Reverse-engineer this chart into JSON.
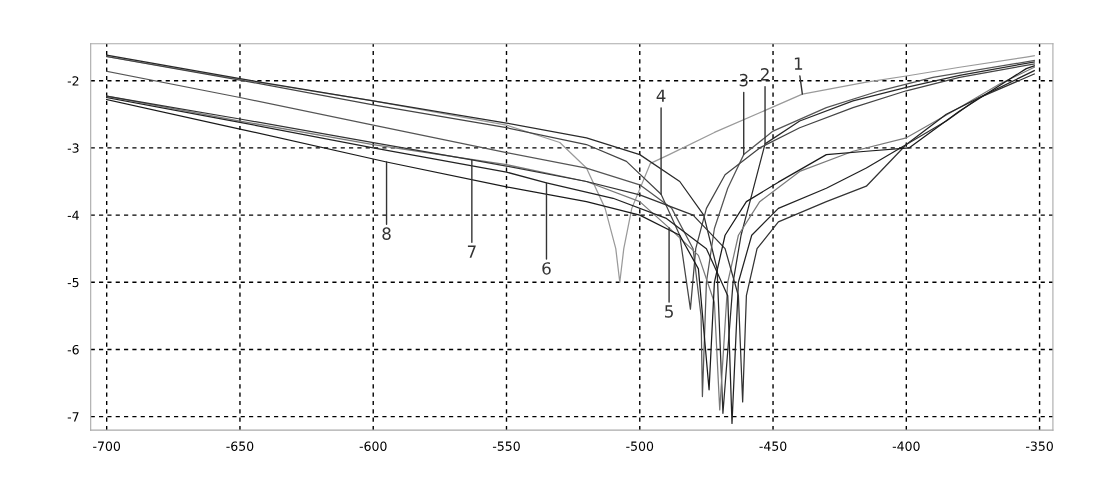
{
  "chart_data": {
    "type": "line",
    "xlim": [
      -706,
      -345
    ],
    "ylim": [
      -7.2,
      -1.45
    ],
    "xticks": [
      -700,
      -650,
      -600,
      -550,
      -500,
      -450,
      -400,
      -350
    ],
    "yticks": [
      -7,
      -6,
      -5,
      -4,
      -3,
      -2
    ],
    "grid": true,
    "line_style": "solid",
    "marker": "none",
    "series": [
      {
        "color": "#9a9a9a",
        "x": [
          -700,
          -650,
          -600,
          -550,
          -530,
          -520,
          -513,
          -509,
          -507.5,
          -506,
          -503,
          -496,
          -489,
          -472,
          -439,
          -415,
          -400,
          -380,
          -355,
          -352
        ],
        "values": [
          -1.64,
          -1.98,
          -2.3,
          -2.66,
          -2.92,
          -3.3,
          -3.9,
          -4.5,
          -5.0,
          -4.5,
          -3.9,
          -3.23,
          -3.1,
          -2.77,
          -2.2,
          -2.02,
          -1.93,
          -1.8,
          -1.65,
          -1.63
        ]
      },
      {
        "color": "#2a2a2a",
        "x": [
          -700,
          -650,
          -600,
          -550,
          -520,
          -500,
          -485,
          -476,
          -471,
          -468.8,
          -465,
          -462,
          -458,
          -453,
          -440,
          -420,
          -400,
          -380,
          -352
        ],
        "values": [
          -1.62,
          -1.97,
          -2.3,
          -2.63,
          -2.85,
          -3.1,
          -3.5,
          -4.0,
          -4.8,
          -6.95,
          -5.0,
          -4.3,
          -3.7,
          -2.94,
          -2.6,
          -2.3,
          -2.1,
          -1.92,
          -1.72
        ]
      },
      {
        "color": "#555555",
        "x": [
          -700,
          -650,
          -600,
          -550,
          -520,
          -500,
          -488,
          -480,
          -477,
          -476.5,
          -475,
          -472,
          -467,
          -461,
          -450,
          -430,
          -410,
          -390,
          -352
        ],
        "values": [
          -1.86,
          -2.25,
          -2.66,
          -3.07,
          -3.3,
          -3.55,
          -3.9,
          -4.5,
          -5.5,
          -6.7,
          -5.0,
          -4.2,
          -3.6,
          -3.1,
          -2.75,
          -2.4,
          -2.15,
          -1.95,
          -1.7
        ]
      },
      {
        "color": "#444444",
        "x": [
          -700,
          -650,
          -600,
          -550,
          -520,
          -505,
          -492,
          -485,
          -481,
          -479,
          -475,
          -468,
          -455,
          -440,
          -420,
          -400,
          -380,
          -352
        ],
        "values": [
          -1.64,
          -1.99,
          -2.36,
          -2.7,
          -2.95,
          -3.2,
          -3.69,
          -4.3,
          -5.4,
          -4.5,
          -3.9,
          -3.4,
          -3.0,
          -2.7,
          -2.4,
          -2.15,
          -1.95,
          -1.75
        ]
      },
      {
        "color": "#7a7a7a",
        "x": [
          -700,
          -650,
          -600,
          -550,
          -520,
          -500,
          -489,
          -478,
          -472,
          -470,
          -467,
          -463,
          -455,
          -440,
          -420,
          -400,
          -380,
          -365,
          -352
        ],
        "values": [
          -2.23,
          -2.6,
          -2.95,
          -3.25,
          -3.5,
          -3.8,
          -4.19,
          -4.6,
          -5.3,
          -6.9,
          -5.0,
          -4.3,
          -3.8,
          -3.35,
          -3.05,
          -2.85,
          -2.4,
          -2.05,
          -1.8
        ]
      },
      {
        "color": "#222222",
        "x": [
          -700,
          -650,
          -600,
          -550,
          -535,
          -510,
          -490,
          -475,
          -467,
          -465.4,
          -463,
          -458,
          -448,
          -430,
          -415,
          -400,
          -385,
          -370,
          -352
        ],
        "values": [
          -2.25,
          -2.62,
          -3.0,
          -3.36,
          -3.52,
          -3.75,
          -4.05,
          -4.5,
          -5.2,
          -7.1,
          -5.0,
          -4.3,
          -3.9,
          -3.6,
          -3.3,
          -2.95,
          -2.5,
          -2.2,
          -1.85
        ]
      },
      {
        "color": "#333333",
        "x": [
          -700,
          -650,
          -600,
          -563,
          -550,
          -520,
          -500,
          -480,
          -468,
          -463,
          -461.4,
          -460,
          -456,
          -448,
          -430,
          -415,
          -400,
          -385,
          -373,
          -352
        ],
        "values": [
          -2.23,
          -2.57,
          -2.92,
          -3.18,
          -3.27,
          -3.5,
          -3.7,
          -4.0,
          -4.5,
          -5.2,
          -6.78,
          -5.2,
          -4.5,
          -4.1,
          -3.8,
          -3.57,
          -2.95,
          -2.6,
          -2.26,
          -1.9
        ]
      },
      {
        "color": "#1a1a1a",
        "x": [
          -700,
          -650,
          -595,
          -550,
          -520,
          -500,
          -485,
          -478,
          -474,
          -472,
          -468,
          -460,
          -448,
          -430,
          -415,
          -399,
          -380,
          -355,
          -352
        ],
        "values": [
          -2.28,
          -2.72,
          -3.21,
          -3.58,
          -3.8,
          -4.0,
          -4.3,
          -4.8,
          -6.6,
          -5.0,
          -4.3,
          -3.8,
          -3.51,
          -3.1,
          -3.05,
          -3.0,
          -2.45,
          -1.82,
          -1.78
        ]
      }
    ],
    "annotations": [
      {
        "text": "1",
        "x": -439,
        "y": -2.2
      },
      {
        "text": "2",
        "x": -453,
        "y": -2.94
      },
      {
        "text": "3",
        "x": -461,
        "y": -3.1
      },
      {
        "text": "4",
        "x": -492,
        "y": -3.69
      },
      {
        "text": "5",
        "x": -489,
        "y": -4.19
      },
      {
        "text": "6",
        "x": -535,
        "y": -3.52
      },
      {
        "text": "7",
        "x": -563,
        "y": -3.18
      },
      {
        "text": "8",
        "x": -595,
        "y": -3.21
      }
    ]
  }
}
